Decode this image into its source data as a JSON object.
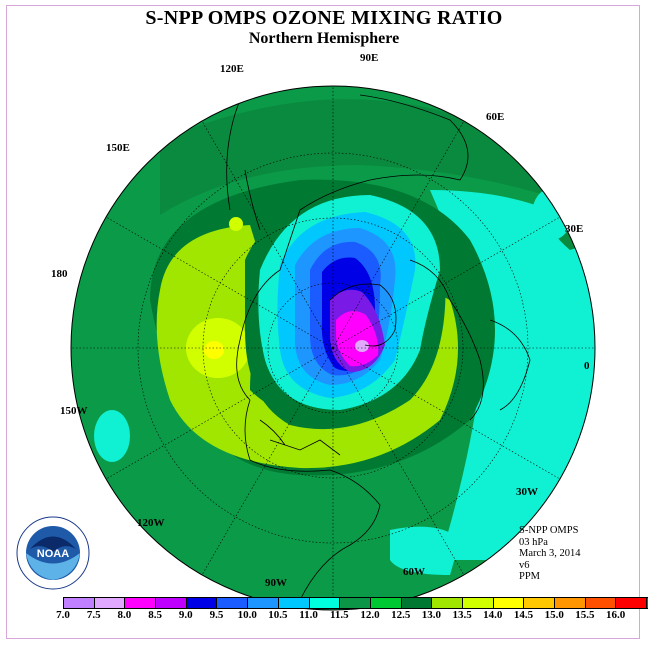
{
  "header": {
    "title": "S-NPP OMPS OZONE MIXING RATIO",
    "subtitle": "Northern Hemisphere"
  },
  "map_labels": {
    "lon_90E": "90E",
    "lon_60E": "60E",
    "lon_30E": "30E",
    "lon_0": "0",
    "lon_30W": "30W",
    "lon_60W": "60W",
    "lon_90W": "90W",
    "lon_120W": "120W",
    "lon_150W": "150W",
    "lon_180": "180",
    "lon_150E": "150E",
    "lon_120E": "120E"
  },
  "info": {
    "instrument": "S-NPP OMPS",
    "level": "03 hPa",
    "date": "March 3, 2014",
    "version": "v6",
    "units": "PPM"
  },
  "logo": {
    "text": "NOAA"
  },
  "colorbar": {
    "ticks": [
      "7.0",
      "7.5",
      "8.0",
      "8.5",
      "9.0",
      "9.5",
      "10.0",
      "10.5",
      "11.0",
      "11.5",
      "12.0",
      "12.5",
      "13.0",
      "13.5",
      "14.0",
      "14.5",
      "15.0",
      "15.5",
      "16.0"
    ],
    "colors": [
      "#c080ff",
      "#e0a8ff",
      "#ff00ff",
      "#c000ff",
      "#0000e6",
      "#1a5cff",
      "#1e96ff",
      "#00c8ff",
      "#00ffdc",
      "#0a9646",
      "#00c832",
      "#007832",
      "#a0e600",
      "#d2ff00",
      "#ffff00",
      "#ffc800",
      "#ff9600",
      "#ff5000",
      "#ff0000",
      "#8b4513"
    ]
  }
}
